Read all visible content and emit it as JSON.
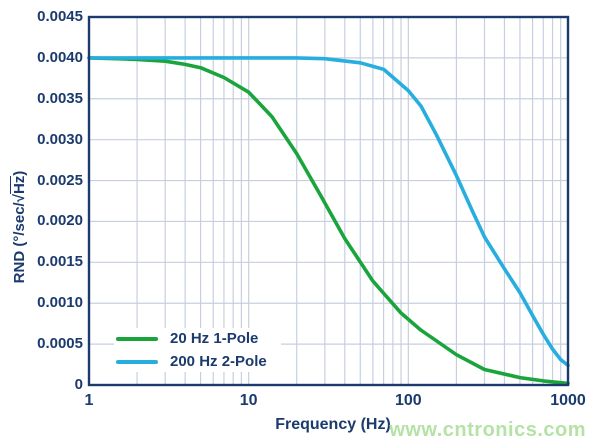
{
  "page": {
    "background": "#ffffff"
  },
  "chart_data": {
    "type": "line",
    "title": "",
    "xlabel": "Frequency (Hz)",
    "ylabel": "RND (°/sec/√Hz)",
    "ylabel_parts": {
      "prefix": "RND (°/sec/√",
      "overline": "Hz",
      "suffix": ")"
    },
    "x_scale": "log",
    "xlim": [
      1,
      1000
    ],
    "ylim": [
      0,
      0.0045
    ],
    "x_ticks": [
      "1",
      "10",
      "100",
      "1000"
    ],
    "y_ticks": [
      "0",
      "0.0005",
      "0.0010",
      "0.0015",
      "0.0020",
      "0.0025",
      "0.0030",
      "0.0035",
      "0.0040",
      "0.0045"
    ],
    "grid": true,
    "legend_position": "inside bottom-left",
    "colors": {
      "axis": "#1b3a6e",
      "text": "#1b3a6e",
      "grid": "#c7cfdf",
      "plot_background": "#ffffff",
      "watermark": "#b5e2a5"
    },
    "series": [
      {
        "name": "20 Hz 1-Pole",
        "color": "#1aa53c",
        "x": [
          1,
          1.5,
          2,
          3,
          4,
          5,
          7,
          10,
          14,
          20,
          28,
          40,
          60,
          90,
          120,
          150,
          200,
          300,
          500,
          700,
          1000
        ],
        "y": [
          0.004,
          0.00399,
          0.00398,
          0.00396,
          0.00392,
          0.00388,
          0.00376,
          0.00358,
          0.00328,
          0.00283,
          0.00233,
          0.00179,
          0.00127,
          0.00088,
          0.00067,
          0.00054,
          0.00037,
          0.00019,
          9e-05,
          5e-05,
          2e-05
        ]
      },
      {
        "name": "200 Hz 2-Pole",
        "color": "#27aede",
        "x": [
          1,
          5,
          10,
          20,
          30,
          50,
          70,
          100,
          120,
          150,
          200,
          250,
          300,
          400,
          500,
          600,
          700,
          800,
          900,
          1000
        ],
        "y": [
          0.004,
          0.004,
          0.004,
          0.004,
          0.00399,
          0.00394,
          0.00386,
          0.0036,
          0.00341,
          0.00306,
          0.00256,
          0.00214,
          0.00181,
          0.00142,
          0.00113,
          0.00085,
          0.00062,
          0.00044,
          0.00031,
          0.00024
        ]
      }
    ],
    "watermark": "www.cntronics.com"
  }
}
